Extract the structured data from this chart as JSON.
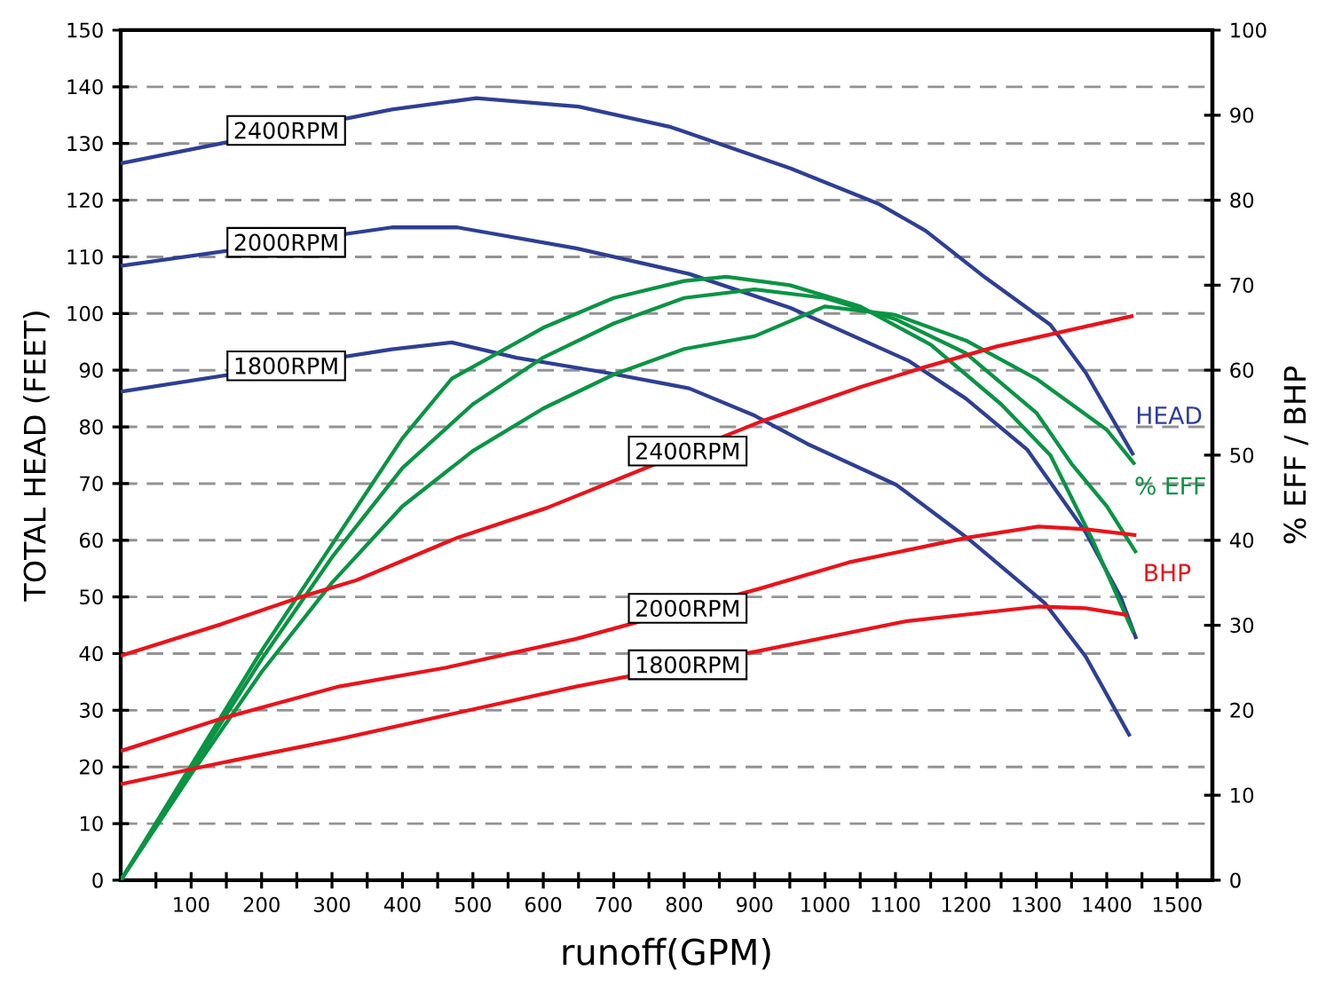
{
  "chart_data": {
    "type": "line",
    "xlabel": "runoff(GPM)",
    "ylabel": "TOTAL HEAD (FEET)",
    "y2label": "% EFF / BHP",
    "xlim": [
      0,
      1550
    ],
    "ylim": [
      0,
      150
    ],
    "y2lim": [
      0,
      100
    ],
    "xticks": [
      {
        "value": 50,
        "label": null
      },
      100,
      {
        "value": 150,
        "label": null
      },
      200,
      {
        "value": 250,
        "label": null
      },
      300,
      {
        "value": 350,
        "label": null
      },
      400,
      {
        "value": 450,
        "label": null
      },
      500,
      {
        "value": 550,
        "label": null
      },
      600,
      {
        "value": 650,
        "label": null
      },
      700,
      {
        "value": 750,
        "label": null
      },
      800,
      {
        "value": 850,
        "label": null
      },
      900,
      {
        "value": 950,
        "label": null
      },
      1000,
      {
        "value": 1050,
        "label": null
      },
      1100,
      {
        "value": 1150,
        "label": null
      },
      1200,
      {
        "value": 1250,
        "label": null
      },
      1300,
      {
        "value": 1350,
        "label": null
      },
      1400,
      {
        "value": 1450,
        "label": null
      },
      1500
    ],
    "yticks": [
      0,
      10,
      20,
      30,
      40,
      50,
      60,
      70,
      80,
      90,
      100,
      110,
      120,
      130,
      140,
      150
    ],
    "y2ticks": [
      0,
      10,
      20,
      30,
      40,
      50,
      60,
      70,
      80,
      90,
      100
    ],
    "grid": "y",
    "line_style": "solid",
    "series": [
      {
        "color": "#2e3f94",
        "x": [
          0,
          385,
          505,
          650,
          781,
          951,
          1077,
          1143,
          1228,
          1320,
          1370,
          1438
        ],
        "values": [
          126.5,
          136,
          138,
          136.5,
          132.9,
          125.6,
          119.3,
          114.6,
          106.3,
          98,
          89.6,
          75
        ]
      },
      {
        "color": "#2e3f94",
        "x": [
          0,
          385,
          478,
          647,
          807,
          951,
          1118,
          1200,
          1287,
          1370,
          1420,
          1442
        ],
        "values": [
          108.4,
          115.2,
          115.2,
          111.5,
          107,
          101,
          91.7,
          85,
          76,
          61.4,
          49.9,
          42.6
        ]
      },
      {
        "color": "#2e3f94",
        "x": [
          0,
          385,
          470,
          562,
          688,
          807,
          900,
          975,
          1101,
          1202,
          1312,
          1370,
          1433
        ],
        "values": [
          86.2,
          93.7,
          94.9,
          92.2,
          89.6,
          86.8,
          82,
          77,
          69.8,
          60.4,
          48.9,
          39.5,
          25.4
        ]
      },
      {
        "color": "#0a9444",
        "axis": "y2",
        "x": [
          0,
          100,
          200,
          300,
          400,
          500,
          600,
          700,
          800,
          900,
          1000,
          1100,
          1200,
          1300,
          1350,
          1400,
          1440
        ],
        "values": [
          0,
          12.5,
          24.5,
          35,
          44,
          50.5,
          55.5,
          59.5,
          62.5,
          64,
          67.5,
          66.5,
          63.5,
          59,
          56,
          53,
          48.9
        ]
      },
      {
        "color": "#0a9444",
        "axis": "y2",
        "x": [
          0,
          100,
          200,
          300,
          400,
          500,
          600,
          700,
          800,
          900,
          1000,
          1100,
          1200,
          1300,
          1350,
          1400,
          1442
        ],
        "values": [
          0,
          13,
          26,
          38,
          48.5,
          56,
          61.5,
          65.5,
          68.5,
          69.5,
          68.5,
          66,
          62,
          55,
          49,
          44,
          38.5
        ]
      },
      {
        "color": "#0a9444",
        "axis": "y2",
        "x": [
          0,
          100,
          200,
          300,
          400,
          470,
          600,
          700,
          800,
          860,
          950,
          1050,
          1150,
          1250,
          1320,
          1380,
          1438
        ],
        "values": [
          0,
          13.5,
          27,
          39.5,
          52,
          59,
          65,
          68.5,
          70.5,
          71,
          70,
          67.5,
          63,
          56,
          50,
          40,
          29.1
        ]
      },
      {
        "color": "#e8141b",
        "axis": "y2",
        "x": [
          0,
          142,
          251,
          335,
          478,
          605,
          907,
          1050,
          1143,
          1244,
          1438
        ],
        "values": [
          26.4,
          30.1,
          33.2,
          35.3,
          40.3,
          43.8,
          53.9,
          58,
          60.4,
          62.8,
          66.4
        ]
      },
      {
        "color": "#e8141b",
        "axis": "y2",
        "x": [
          0,
          142,
          310,
          461,
          647,
          907,
          1034,
          1202,
          1303,
          1370,
          1442
        ],
        "values": [
          15.2,
          19,
          22.8,
          25,
          28.4,
          34.3,
          37.4,
          40.3,
          41.6,
          41.3,
          40.6
        ]
      },
      {
        "color": "#e8141b",
        "axis": "y2",
        "x": [
          0,
          142,
          310,
          478,
          647,
          907,
          1117,
          1303,
          1370,
          1430
        ],
        "values": [
          11.3,
          13.8,
          16.6,
          19.7,
          22.8,
          27,
          30.5,
          32.2,
          32,
          31.2
        ]
      }
    ],
    "annotations": [
      {
        "text": "2400RPM",
        "x": 235,
        "y": 132.3
      },
      {
        "text": "2000RPM",
        "x": 235,
        "y": 112.55
      },
      {
        "text": "1800RPM",
        "x": 235,
        "y": 90.78
      },
      {
        "text": "2400RPM",
        "x": 805,
        "y": 75.74
      },
      {
        "text": "2000RPM",
        "x": 805,
        "y": 47.99
      },
      {
        "text": "1800RPM",
        "x": 805,
        "y": 38.03
      },
      {
        "text": "HEAD",
        "x": 1438,
        "y": 75
      },
      {
        "text": "% EFF",
        "x": 1440,
        "y": 73.35
      },
      {
        "text": "BHP",
        "x": 1442,
        "y": 60.9
      }
    ]
  }
}
